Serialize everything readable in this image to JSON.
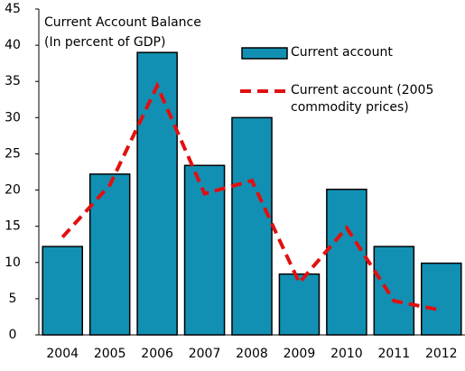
{
  "chart_data": {
    "type": "bar",
    "title": "Current Account Balance",
    "subtitle": "(In percent of GDP)",
    "categories": [
      "2004",
      "2005",
      "2006",
      "2007",
      "2008",
      "2009",
      "2010",
      "2011",
      "2012"
    ],
    "series": [
      {
        "name": "Current account",
        "type": "bar",
        "color": "#1190b3",
        "values": [
          12.2,
          22.2,
          39.0,
          23.4,
          30.0,
          8.4,
          20.1,
          12.2,
          9.9
        ]
      },
      {
        "name": "Current account (2005 commodity prices)",
        "type": "line",
        "color": "#e01010",
        "values": [
          13.5,
          20.7,
          34.4,
          19.5,
          21.3,
          7.2,
          14.8,
          4.7,
          3.4
        ]
      }
    ],
    "ylim": [
      0,
      45
    ],
    "yticks": [
      0,
      5,
      10,
      15,
      20,
      25,
      30,
      35,
      40,
      45
    ],
    "grid": false
  }
}
